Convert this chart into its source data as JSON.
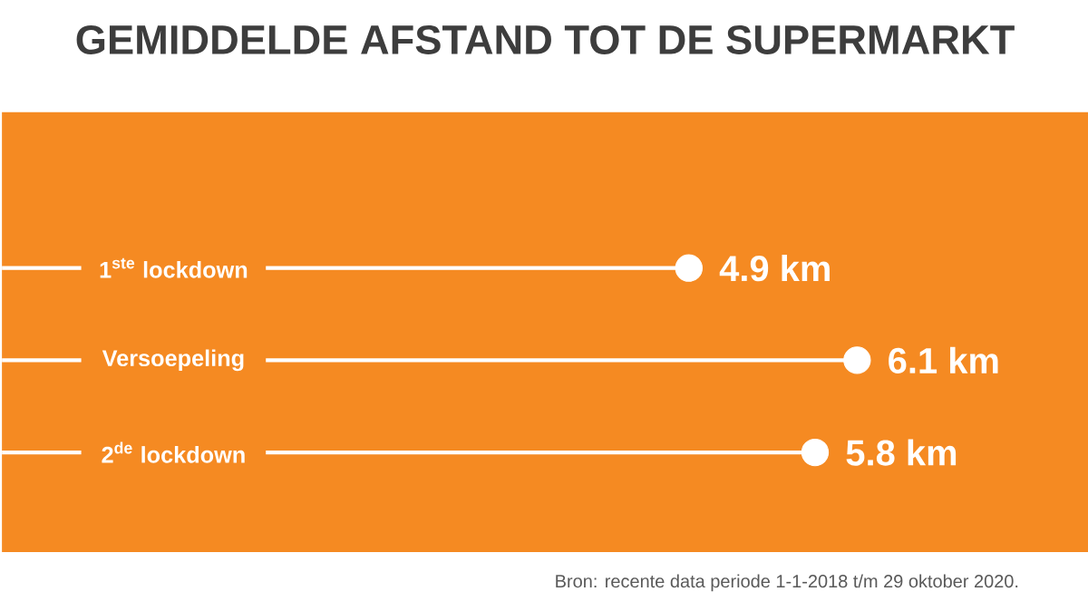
{
  "chart_data": {
    "type": "lollipop",
    "orientation": "horizontal",
    "title": "GEMIDDELDE AFSTAND TOT DE SUPERMARKT",
    "categories": [
      "1$^{ste}$ lockdown",
      "Versoepeling",
      "2$^{de}$ lockdown"
    ],
    "values": [
      4.9,
      6.1,
      5.8
    ],
    "value_labels": [
      "4.9 km",
      "6.1 km",
      "5.8 km"
    ],
    "color": "#ffffff",
    "marker": "circle",
    "annotations": [
      "Bron:  recente data periode 1-1-2018 t/m 29 oktober 2020."
    ]
  }
}
